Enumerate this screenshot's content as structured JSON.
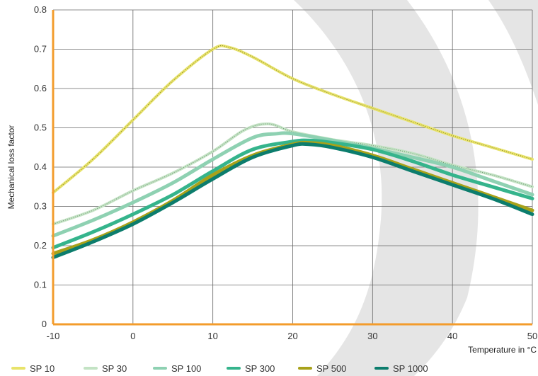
{
  "chart_data": {
    "type": "line",
    "title": "",
    "xlabel": "Temperature in °C",
    "ylabel": "Mechanical loss factor",
    "xlim": [
      -10,
      50
    ],
    "ylim": [
      0,
      0.8
    ],
    "x_ticks": [
      -10,
      0,
      10,
      20,
      30,
      40,
      50
    ],
    "y_ticks": [
      0,
      0.1,
      0.2,
      0.3,
      0.4,
      0.5,
      0.6,
      0.7,
      0.8
    ],
    "x_tick_labels": [
      "-10",
      "0",
      "10",
      "20",
      "30",
      "40",
      "50"
    ],
    "y_tick_labels": [
      "0",
      "0.1",
      "0.2",
      "0.3",
      "0.4",
      "0.5",
      "0.6",
      "0.7",
      "0.8"
    ],
    "grid": true,
    "legend_position": "bottom",
    "series": [
      {
        "name": "SP 10",
        "color": "#e8e36a",
        "x": [
          -10,
          -5,
          0,
          5,
          10,
          12,
          15,
          20,
          25,
          30,
          35,
          40,
          45,
          50
        ],
        "y": [
          0.335,
          0.42,
          0.52,
          0.62,
          0.7,
          0.705,
          0.68,
          0.625,
          0.585,
          0.55,
          0.515,
          0.48,
          0.45,
          0.42
        ]
      },
      {
        "name": "SP 30",
        "color": "#c3e3c4",
        "x": [
          -10,
          -5,
          0,
          5,
          10,
          14,
          17,
          20,
          25,
          30,
          35,
          40,
          45,
          50
        ],
        "y": [
          0.255,
          0.29,
          0.34,
          0.385,
          0.44,
          0.495,
          0.51,
          0.49,
          0.47,
          0.455,
          0.435,
          0.405,
          0.38,
          0.35
        ]
      },
      {
        "name": "SP 100",
        "color": "#8ed1b2",
        "x": [
          -10,
          -5,
          0,
          5,
          10,
          15,
          18,
          20,
          25,
          30,
          35,
          40,
          45,
          50
        ],
        "y": [
          0.225,
          0.265,
          0.31,
          0.36,
          0.42,
          0.475,
          0.485,
          0.485,
          0.468,
          0.448,
          0.425,
          0.4,
          0.365,
          0.33
        ]
      },
      {
        "name": "SP 300",
        "color": "#35b48c",
        "x": [
          -10,
          -5,
          0,
          5,
          10,
          15,
          20,
          22,
          25,
          30,
          35,
          40,
          45,
          50
        ],
        "y": [
          0.195,
          0.235,
          0.28,
          0.33,
          0.39,
          0.445,
          0.465,
          0.468,
          0.462,
          0.445,
          0.415,
          0.38,
          0.35,
          0.32
        ]
      },
      {
        "name": "SP 500",
        "color": "#a8a21a",
        "x": [
          -10,
          -5,
          0,
          5,
          10,
          15,
          20,
          22,
          25,
          30,
          35,
          40,
          45,
          50
        ],
        "y": [
          0.18,
          0.215,
          0.26,
          0.315,
          0.38,
          0.43,
          0.458,
          0.462,
          0.455,
          0.43,
          0.395,
          0.36,
          0.325,
          0.29
        ]
      },
      {
        "name": "SP 1000",
        "color": "#0c7d6d",
        "x": [
          -10,
          -5,
          0,
          5,
          10,
          15,
          20,
          22,
          25,
          30,
          35,
          40,
          45,
          50
        ],
        "y": [
          0.17,
          0.21,
          0.255,
          0.31,
          0.37,
          0.425,
          0.455,
          0.458,
          0.45,
          0.425,
          0.39,
          0.355,
          0.32,
          0.28
        ]
      }
    ]
  },
  "colors": {
    "axis_accent": "#f39c2c",
    "grid": "#666666",
    "watermark": "#e5e5e5"
  }
}
